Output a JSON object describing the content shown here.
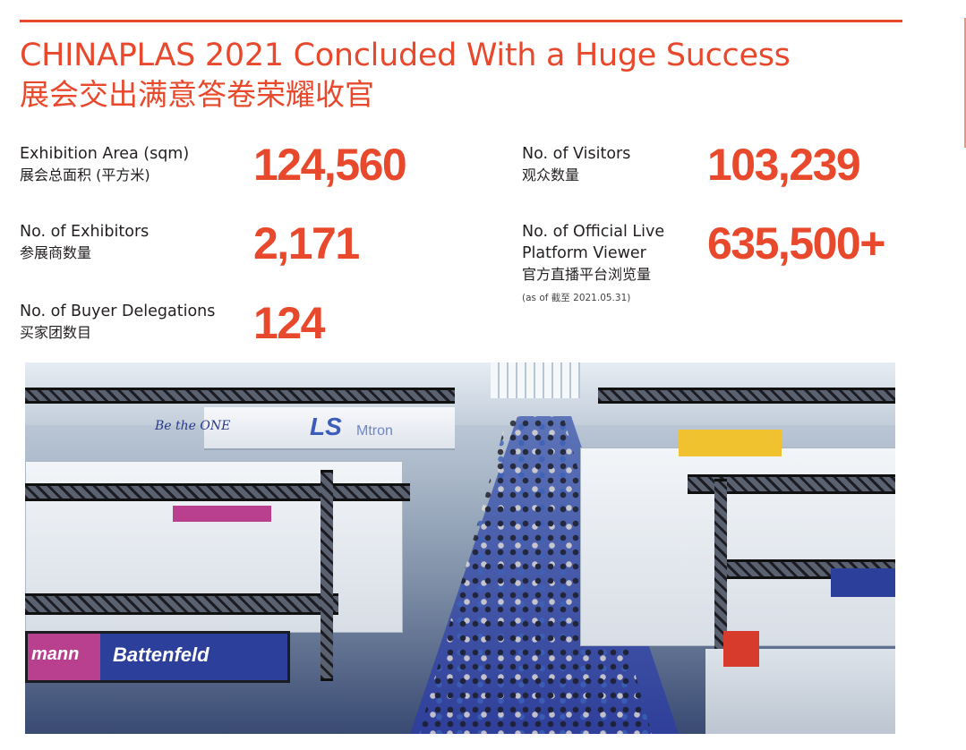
{
  "header": {
    "title_en": "CHINAPLAS 2021 Concluded With a Huge Success",
    "title_cn": "展会交出满意答卷荣耀收官"
  },
  "stats": {
    "area": {
      "label_en": "Exhibition Area (sqm)",
      "label_cn": "展会总面积 (平方米)",
      "value": "124,560"
    },
    "visitors": {
      "label_en": "No. of Visitors",
      "label_cn": "观众数量",
      "value": "103,239"
    },
    "exhibitors": {
      "label_en": "No. of Exhibitors",
      "label_cn": "参展商数量",
      "value": "2,171"
    },
    "live_viewers": {
      "label_en_line1": "No. of Official Live",
      "label_en_line2": "Platform Viewer",
      "label_cn": "官方直播平台浏览量",
      "note": "(as of 截至 2021.05.31)",
      "value": "635,500+"
    },
    "delegations": {
      "label_en": "No. of Buyer Delegations",
      "label_cn": "买家团数目",
      "value": "124"
    }
  },
  "photo": {
    "sign_beone": "Be the ONE",
    "sign_ls": "LS",
    "sign_mtron": "Mtron",
    "banner_left": "mann",
    "banner_right": "Battenfeld"
  },
  "colors": {
    "accent": "#e8482b",
    "text": "#231f20"
  }
}
